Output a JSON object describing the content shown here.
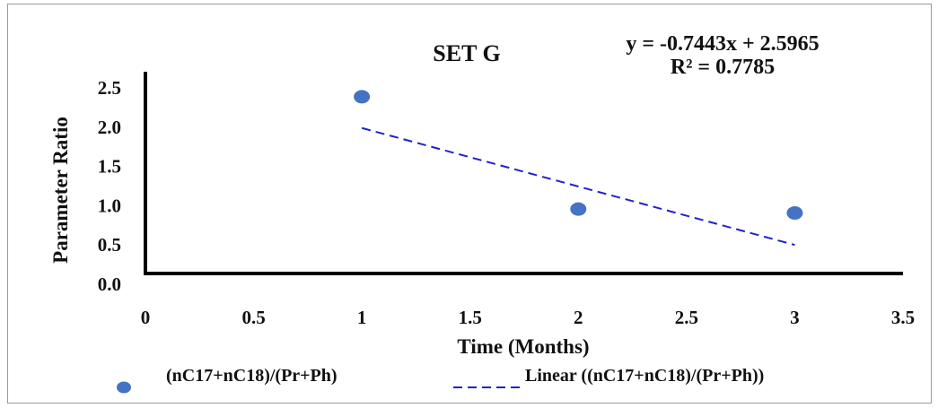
{
  "chart_data": {
    "type": "scatter",
    "title": "SET G",
    "xlabel": "Time  (Months)",
    "ylabel": "Parameter  Ratio",
    "xlim": [
      0,
      3.5
    ],
    "ylim": [
      0,
      2.5
    ],
    "x_ticks": [
      "0",
      "0.5",
      "1",
      "1.5",
      "2",
      "2.5",
      "3",
      "3.5"
    ],
    "y_ticks": [
      "0.0",
      "0.5",
      "1.0",
      "1.5",
      "2.0",
      "2.5"
    ],
    "x_tick_values": [
      0,
      0.5,
      1,
      1.5,
      2,
      2.5,
      3,
      3.5
    ],
    "y_tick_values": [
      0,
      0.5,
      1,
      1.5,
      2,
      2.5
    ],
    "grid": false,
    "legend_position": "bottom",
    "series": [
      {
        "name": "(nC17+nC18)/(Pr+Ph)",
        "type": "scatter",
        "color": "#4472c4",
        "points": [
          {
            "x": 1,
            "y": 2.25
          },
          {
            "x": 2,
            "y": 0.82
          },
          {
            "x": 3,
            "y": 0.77
          }
        ]
      },
      {
        "name": "Linear  ((nC17+nC18)/(Pr+Ph))",
        "type": "trendline",
        "color": "#2222cc",
        "slope": -0.7443,
        "intercept": 2.5965,
        "x_range": [
          1,
          3
        ]
      }
    ],
    "annotations": {
      "equation": "y = -0.7443x + 2.5965",
      "r_squared": "R² = 0.7785"
    }
  }
}
